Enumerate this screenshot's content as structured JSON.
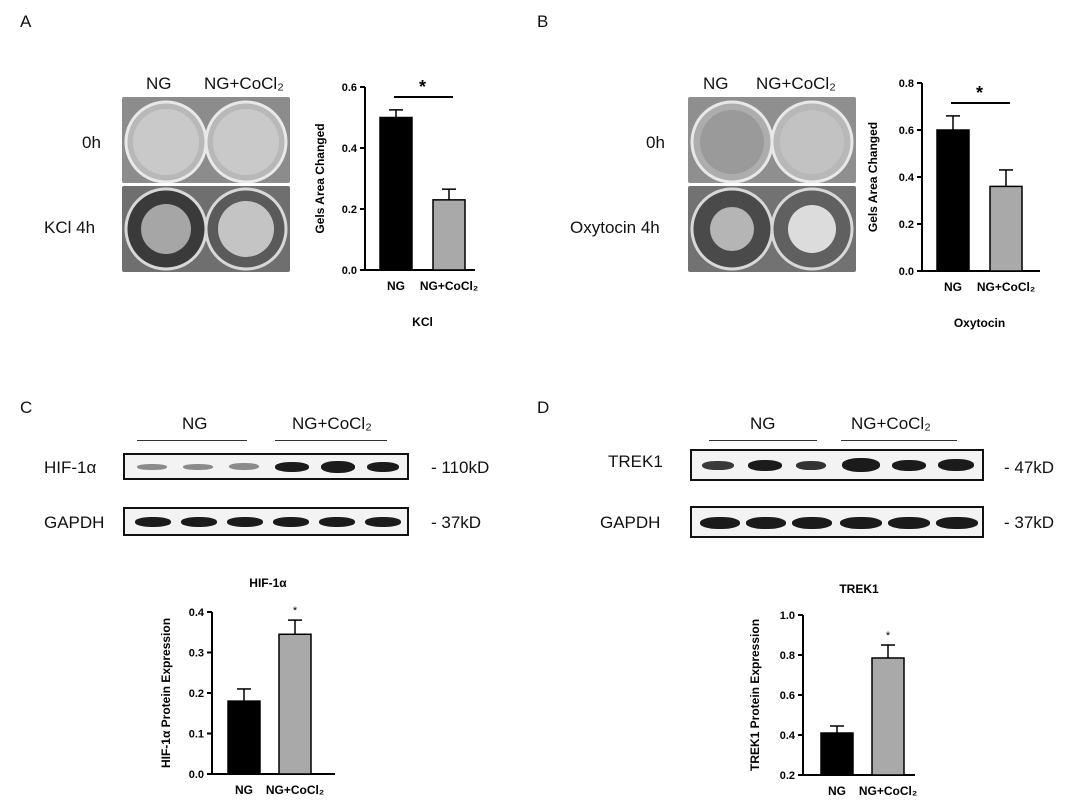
{
  "panel_letters": {
    "a": "A",
    "b": "B",
    "c": "C",
    "d": "D"
  },
  "panel_a": {
    "groups": [
      "NG",
      "NG+CoCl₂"
    ],
    "rows": [
      "0h",
      "KCl 4h"
    ]
  },
  "panel_b": {
    "groups": [
      "NG",
      "NG+CoCl₂"
    ],
    "rows": [
      "0h",
      "Oxytocin 4h"
    ]
  },
  "panel_c": {
    "groups": [
      "NG",
      "NG+CoCl₂"
    ],
    "blots": [
      {
        "name": "HIF-1α",
        "weight": "- 110kD"
      },
      {
        "name": "GAPDH",
        "weight": "- 37kD"
      }
    ]
  },
  "panel_d": {
    "groups": [
      "NG",
      "NG+CoCl₂"
    ],
    "blots": [
      {
        "name": "TREK1",
        "weight": "- 47kD"
      },
      {
        "name": "GAPDH",
        "weight": "- 37kD"
      }
    ]
  },
  "chart_data": [
    {
      "type": "bar",
      "categories": [
        "NG",
        "NG+CoCl₂"
      ],
      "values": [
        0.5,
        0.23
      ],
      "errors": [
        0.025,
        0.035
      ],
      "title": "",
      "xlabel": "KCl",
      "ylabel": "Gels Area Changed",
      "ylim": [
        0,
        0.6
      ],
      "yticks": [
        "0.0",
        "0.2",
        "0.4",
        "0.6"
      ],
      "significance": "*",
      "colors": [
        "#000000",
        "#a9a9a9"
      ]
    },
    {
      "type": "bar",
      "categories": [
        "NG",
        "NG+CoCl₂"
      ],
      "values": [
        0.6,
        0.36
      ],
      "errors": [
        0.06,
        0.07
      ],
      "title": "",
      "xlabel": "Oxytocin",
      "ylabel": "Gels Area Changed",
      "ylim": [
        0,
        0.8
      ],
      "yticks": [
        "0.0",
        "0.2",
        "0.4",
        "0.6",
        "0.8"
      ],
      "significance": "*",
      "colors": [
        "#000000",
        "#a9a9a9"
      ]
    },
    {
      "type": "bar",
      "categories": [
        "NG",
        "NG+CoCl₂"
      ],
      "values": [
        0.18,
        0.345
      ],
      "errors": [
        0.03,
        0.035
      ],
      "title": "HIF-1α",
      "xlabel": "",
      "ylabel": "HIF-1α Protein Expression",
      "ylim": [
        0,
        0.4
      ],
      "yticks": [
        "0.0",
        "0.1",
        "0.2",
        "0.3",
        "0.4"
      ],
      "significance": "*",
      "colors": [
        "#000000",
        "#a9a9a9"
      ]
    },
    {
      "type": "bar",
      "categories": [
        "NG",
        "NG+CoCl₂"
      ],
      "values": [
        0.41,
        0.785
      ],
      "errors": [
        0.035,
        0.065
      ],
      "title": "TREK1",
      "xlabel": "",
      "ylabel": "TREK1 Protein Expression",
      "ylim": [
        0.2,
        1.0
      ],
      "yticks": [
        "0.2",
        "0.4",
        "0.6",
        "0.8",
        "1.0"
      ],
      "significance": "*",
      "colors": [
        "#000000",
        "#a9a9a9"
      ]
    }
  ]
}
